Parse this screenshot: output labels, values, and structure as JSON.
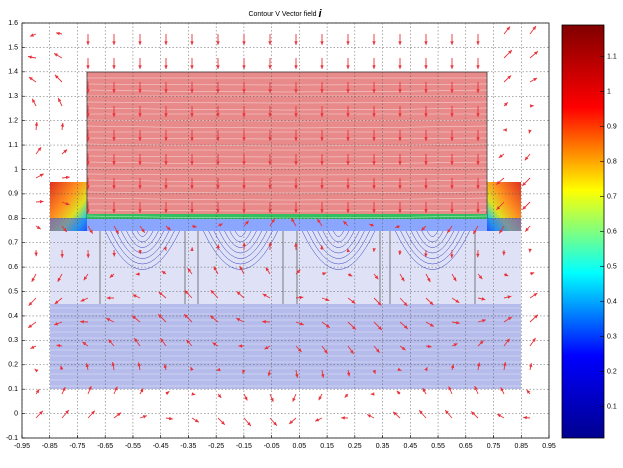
{
  "chart_data": {
    "type": "contour",
    "title": "Contour V Vector field",
    "title_symbol": "i",
    "xlim": [
      -0.95,
      0.95
    ],
    "xticks": [
      -0.95,
      -0.85,
      -0.75,
      -0.65,
      -0.55,
      -0.45,
      -0.35,
      -0.25,
      -0.15,
      -0.05,
      0.05,
      0.15,
      0.25,
      0.35,
      0.45,
      0.55,
      0.65,
      0.75,
      0.85,
      0.95
    ],
    "ylim": [
      -0.1,
      1.6
    ],
    "yticks": [
      -0.1,
      0,
      0.1,
      0.2,
      0.3,
      0.4,
      0.5,
      0.6,
      0.7,
      0.8,
      0.9,
      1,
      1.1,
      1.2,
      1.3,
      1.4,
      1.5,
      1.6
    ],
    "grid": true,
    "clim": [
      0.01,
      1.19
    ],
    "cticks": [
      0.1,
      0.2,
      0.3,
      0.4,
      0.5,
      0.6,
      0.7,
      0.8,
      0.9,
      1,
      1.1
    ],
    "colormap": [
      "#00008f",
      "#0000ff",
      "#00ffff",
      "#ffff00",
      "#ff0000",
      "#800000"
    ],
    "arrow_color": "#e8323a"
  }
}
